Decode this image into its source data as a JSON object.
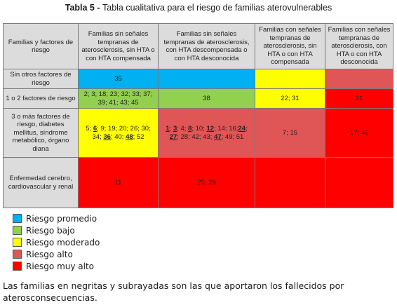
{
  "caption": {
    "label": "Tabla 5",
    "separator": " - ",
    "text": "Tabla cualitativa para el riesgo de familias aterovulnerables"
  },
  "table": {
    "corner": "Familias y factores de riesgo",
    "columns": [
      "Familias sin señales tempranas de aterosclerosis, sin HTA o con HTA compensada",
      "Familias sin señales tempranas de aterosclerosis, con HTA descompensada o con HTA desconocida",
      "Familias con señales tempranas de aterosclerosis, sin HTA o con HTA compensada",
      "Familias con señales tempranas de aterosclerosis, con HTA o con HTA desconocida"
    ],
    "rows": [
      {
        "label": "Sin otros factores de riesgo",
        "cells": [
          {
            "color": "#00b0f0",
            "bold": false,
            "parts": [
              {
                "t": "35",
                "u": false
              }
            ]
          },
          {
            "color": "#00b0f0",
            "bold": false,
            "parts": []
          },
          {
            "color": "#ffff00",
            "bold": false,
            "parts": []
          },
          {
            "color": "#e05555",
            "bold": false,
            "parts": []
          }
        ]
      },
      {
        "label": "1 o 2 factores de riesgo",
        "cells": [
          {
            "color": "#92d050",
            "bold": false,
            "parts": [
              {
                "t": "2; 3; 18; 23; 32; 33; 37; 39; 41; 43; 45",
                "u": false
              }
            ]
          },
          {
            "color": "#92d050",
            "bold": false,
            "parts": [
              {
                "t": "38",
                "u": false
              }
            ]
          },
          {
            "color": "#ffff00",
            "bold": false,
            "parts": [
              {
                "t": "22; 31",
                "u": false
              }
            ]
          },
          {
            "color": "#ff0000",
            "bold": false,
            "parts": [
              {
                "t": "21",
                "u": false
              }
            ]
          }
        ]
      },
      {
        "label": "3 o más factores de riesgo, diabetes mellitus, síndrome metabólico, órgano diana",
        "cells": [
          {
            "color": "#ffff00",
            "bold": false,
            "parts": [
              {
                "t": "5; ",
                "u": false
              },
              {
                "t": "6",
                "u": true
              },
              {
                "t": "; 9; 19; 20; 26; 30; 34; ",
                "u": false
              },
              {
                "t": "36",
                "u": true
              },
              {
                "t": "; 40; ",
                "u": false
              },
              {
                "t": "48",
                "u": true
              },
              {
                "t": "; 52",
                "u": false
              }
            ]
          },
          {
            "color": "#e05555",
            "bold": false,
            "parts": [
              {
                "t": "1",
                "u": true
              },
              {
                "t": "; ",
                "u": false
              },
              {
                "t": "3",
                "u": true
              },
              {
                "t": "; 4; ",
                "u": false
              },
              {
                "t": "8",
                "u": true
              },
              {
                "t": "; 10; ",
                "u": false
              },
              {
                "t": "12",
                "u": true
              },
              {
                "t": "; 14; 16;",
                "u": false
              },
              {
                "t": "24",
                "u": true
              },
              {
                "t": "; ",
                "u": false
              },
              {
                "t": "27",
                "u": true
              },
              {
                "t": "; 28; 42; 43; ",
                "u": false
              },
              {
                "t": "47",
                "u": true
              },
              {
                "t": "; 49; 51",
                "u": false
              }
            ]
          },
          {
            "color": "#e05555",
            "bold": false,
            "parts": [
              {
                "t": "7; 15",
                "u": false
              }
            ]
          },
          {
            "color": "#ff0000",
            "bold": false,
            "parts": [
              {
                "t": "17; 46",
                "u": false
              }
            ]
          }
        ]
      },
      {
        "label": "Enfermedad cerebro, cardiovascular y renal",
        "cells": [
          {
            "color": "#ff0000",
            "bold": true,
            "parts": [
              {
                "t": "11",
                "u": false
              }
            ]
          },
          {
            "color": "#ff0000",
            "bold": true,
            "parts": [
              {
                "t": "25; 29",
                "u": false
              }
            ]
          },
          {
            "color": "#ff0000",
            "bold": false,
            "parts": []
          },
          {
            "color": "#ff0000",
            "bold": false,
            "parts": []
          }
        ]
      }
    ]
  },
  "legend": [
    {
      "color": "#00b0f0",
      "label": "Riesgo promedio"
    },
    {
      "color": "#92d050",
      "label": "Riesgo bajo"
    },
    {
      "color": "#ffff00",
      "label": "Riesgo moderado"
    },
    {
      "color": "#e05555",
      "label": "Riesgo alto"
    },
    {
      "color": "#ff0000",
      "label": "Riesgo muy alto"
    }
  ],
  "note": "Las familias en negritas y subrayadas son las que aportaron los fallecidos por aterosconsecuencias."
}
